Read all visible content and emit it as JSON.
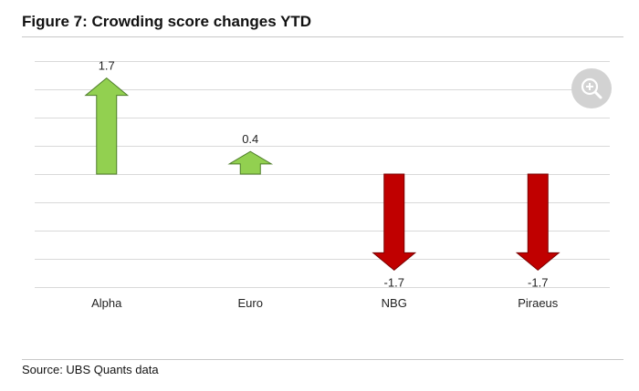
{
  "figure": {
    "title": "Figure 7: Crowding score changes YTD",
    "source": "Source: UBS Quants data"
  },
  "colors": {
    "up_fill": "#92d050",
    "up_stroke": "#4e7d2a",
    "down_fill": "#c00000",
    "down_stroke": "#7a0000",
    "grid": "#d9d9d9",
    "text": "#222222"
  },
  "zoom_button": {
    "icon": "zoom-in-icon"
  },
  "chart_data": {
    "type": "bar",
    "style": "arrow",
    "categories": [
      "Alpha",
      "Euro",
      "NBG",
      "Piraeus"
    ],
    "values": [
      1.7,
      0.4,
      -1.7,
      -1.7
    ],
    "data_labels": [
      "1.7",
      "0.4",
      "-1.7",
      "-1.7"
    ],
    "title": "",
    "xlabel": "",
    "ylabel": "",
    "ylim": [
      -2,
      2
    ],
    "y_tick_step": 0.5,
    "y_tick_labels_shown": false,
    "grid": true,
    "legend": "none"
  }
}
